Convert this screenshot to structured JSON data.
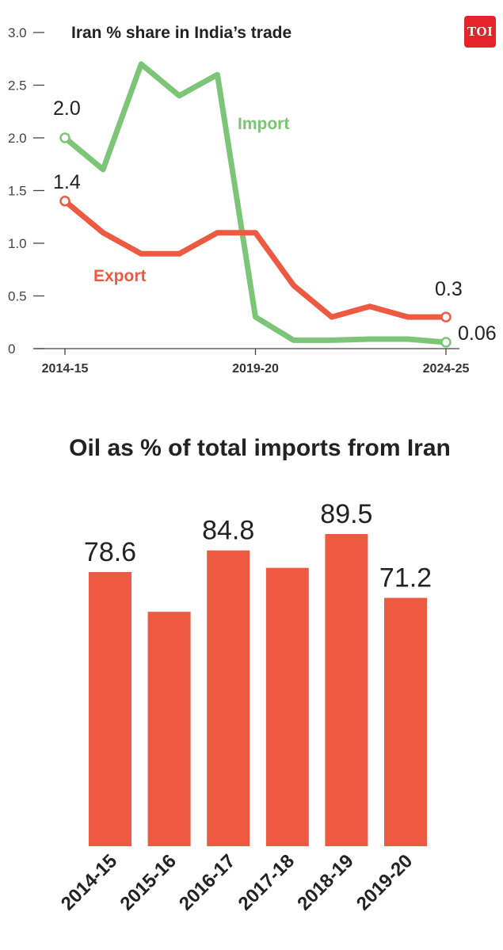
{
  "brand": {
    "logo_text": "TOI",
    "logo_color": "#e4232b"
  },
  "chart_data": [
    {
      "type": "line",
      "title": "Iran % share in India’s trade",
      "xlabel": "",
      "ylabel": "",
      "x": [
        "2014-15",
        "2015-16",
        "2016-17",
        "2017-18",
        "2018-19",
        "2019-20",
        "2020-21",
        "2021-22",
        "2022-23",
        "2023-24",
        "2024-25"
      ],
      "x_tick_labels": [
        "2014-15",
        "2019-20",
        "2024-25"
      ],
      "ylim": [
        0,
        3.0
      ],
      "y_ticks": [
        {
          "value": 0,
          "label": "0"
        },
        {
          "value": 0.5,
          "label": "0.5"
        },
        {
          "value": 1.0,
          "label": "1.0"
        },
        {
          "value": 1.5,
          "label": "1.5"
        },
        {
          "value": 2.0,
          "label": "2.0"
        },
        {
          "value": 2.5,
          "label": "2.5"
        },
        {
          "value": 3.0,
          "label": "3.0"
        }
      ],
      "grid": false,
      "series": [
        {
          "name": "Import",
          "color": "#7cc576",
          "values": [
            2.0,
            1.7,
            2.7,
            2.4,
            2.6,
            0.3,
            0.08,
            0.08,
            0.09,
            0.09,
            0.06
          ],
          "start_label": "2.0",
          "end_label": "0.06"
        },
        {
          "name": "Export",
          "color": "#ee5a41",
          "values": [
            1.4,
            1.1,
            0.9,
            0.9,
            1.1,
            1.1,
            0.6,
            0.3,
            0.4,
            0.3,
            0.3
          ],
          "start_label": "1.4",
          "end_label": "0.3"
        }
      ]
    },
    {
      "type": "bar",
      "title": "Oil as % of total imports from Iran",
      "xlabel": "",
      "ylabel": "",
      "ylim": [
        0,
        90
      ],
      "grid": false,
      "color": "#ee5a41",
      "categories": [
        "2014-15",
        "2015-16",
        "2016-17",
        "2017-18",
        "2018-19",
        "2019-20"
      ],
      "values": [
        78.6,
        67.2,
        84.8,
        79.8,
        89.5,
        71.2
      ],
      "data_labels": [
        "78.6",
        "",
        "84.8",
        "",
        "89.5",
        "71.2"
      ]
    }
  ]
}
